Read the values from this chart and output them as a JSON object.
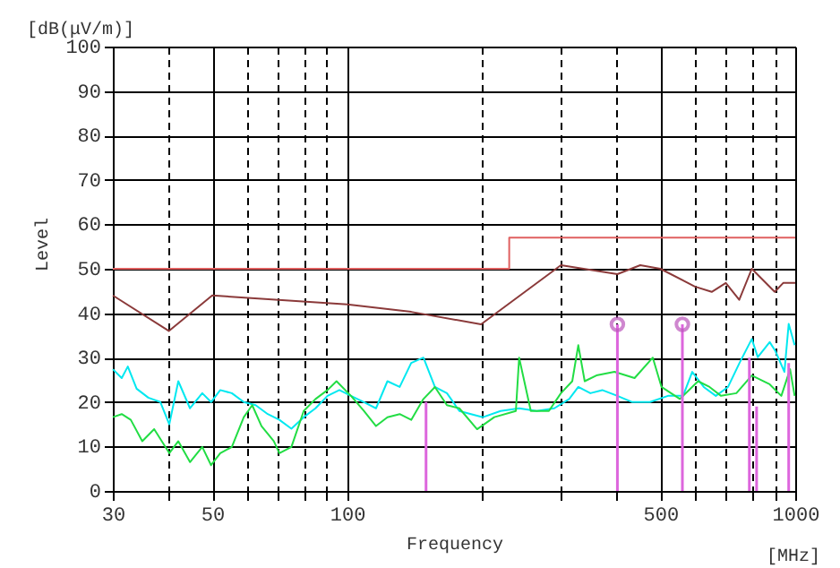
{
  "chart_data": {
    "type": "line",
    "xlabel": "Frequency",
    "ylabel": "Level",
    "annotations": [
      "[dB(μV/m)]",
      "[MHz]"
    ],
    "log": "x",
    "xlim": [
      30,
      1000
    ],
    "ylim": [
      0,
      100
    ],
    "xticks": [
      30,
      {
        "value": 40,
        "label": null
      },
      50,
      {
        "value": 60,
        "label": null
      },
      {
        "value": 70,
        "label": null
      },
      {
        "value": 80,
        "label": null
      },
      {
        "value": 90,
        "label": null
      },
      100,
      {
        "value": 200,
        "label": null
      },
      {
        "value": 300,
        "label": null
      },
      {
        "value": 400,
        "label": null
      },
      500,
      {
        "value": 600,
        "label": null
      },
      {
        "value": 700,
        "label": null
      },
      {
        "value": 800,
        "label": null
      },
      {
        "value": 900,
        "label": null
      },
      1000
    ],
    "yticks": [
      0,
      10,
      20,
      30,
      40,
      50,
      60,
      70,
      80,
      90,
      100
    ],
    "grid": true,
    "series": [
      {
        "color": "#00e8f0",
        "x": [
          30,
          31.4,
          32.4,
          33.9,
          36.0,
          38.3,
          40.1,
          42.0,
          44.6,
          47.5,
          49.7,
          52.1,
          55.3,
          58.8,
          62.5,
          66.5,
          70.6,
          75.1,
          80.0,
          85.0,
          90.4,
          96.1,
          102,
          109,
          116,
          123,
          131,
          139,
          148,
          157,
          167,
          178,
          189,
          201,
          220,
          242,
          265,
          290,
          313,
          328,
          349,
          371,
          401,
          433,
          474,
          520,
          562,
          589,
          625,
          665,
          708,
          751,
          800,
          825,
          877,
          903,
          946,
          967,
          997
        ],
        "values": [
          27.4,
          25.4,
          28,
          23,
          21,
          20,
          15,
          24.7,
          18.6,
          22,
          20,
          22.7,
          22,
          20,
          19.3,
          17.3,
          16,
          14,
          16.6,
          18.6,
          21.4,
          22.7,
          21.4,
          20,
          18.6,
          24.7,
          23.4,
          28.8,
          30,
          23.4,
          22,
          18,
          17.3,
          16.6,
          18,
          18.6,
          18,
          18.6,
          20.7,
          23.4,
          22,
          22.7,
          21.4,
          20,
          20,
          21.4,
          21.4,
          26.8,
          23.4,
          21.4,
          23.4,
          28.8,
          34.2,
          30.1,
          33.5,
          31.5,
          26.8,
          37.6,
          32.8
        ]
      },
      {
        "color": "#22dd44",
        "x": [
          30,
          31.4,
          32.9,
          34.9,
          37.1,
          40.1,
          42.0,
          44.6,
          47.5,
          49.7,
          52.1,
          55.3,
          58.8,
          61.4,
          64.4,
          68.6,
          70.6,
          75.1,
          80.0,
          85.0,
          90.4,
          94.7,
          102,
          109,
          116,
          123,
          131,
          139,
          148,
          157,
          167,
          178,
          195,
          213,
          238,
          242,
          257,
          282,
          300,
          318,
          328,
          339,
          360,
          395,
          438,
          481,
          503,
          553,
          607,
          644,
          683,
          739,
          800,
          877,
          931,
          974,
          997
        ],
        "values": [
          16.6,
          17.3,
          16,
          11.2,
          13.9,
          8.5,
          11.2,
          6.5,
          9.9,
          5.8,
          8.5,
          9.9,
          16.6,
          19.3,
          14.6,
          11.2,
          8.5,
          9.9,
          18,
          20.7,
          22.7,
          24.7,
          21.4,
          18,
          14.6,
          16.6,
          17.3,
          16,
          20.7,
          23.4,
          19.3,
          18.6,
          13.9,
          16.6,
          18,
          30,
          18,
          18,
          22,
          24.7,
          32.8,
          24.7,
          26,
          26.8,
          25.4,
          30,
          23.4,
          20.7,
          24.7,
          23.4,
          21.4,
          22,
          26,
          24,
          21.4,
          27.4,
          21.4
        ]
      },
      {
        "color": "#8b3a3a",
        "x": [
          30,
          40,
          50,
          100,
          139,
          199,
          300,
          401,
          451,
          500,
          597,
          651,
          700,
          750,
          800,
          900,
          940,
          1000
        ],
        "values": [
          44,
          36,
          44,
          42,
          40.3,
          37.5,
          50.8,
          48.8,
          50.8,
          50,
          46,
          44.8,
          46.8,
          43,
          50,
          44.8,
          46.8,
          46.8
        ]
      },
      {
        "type": "step",
        "color": "#e06060",
        "x": [
          30,
          230,
          1000
        ],
        "values": [
          50,
          57,
          57
        ]
      },
      {
        "type": "bar",
        "color": "#dd66dd",
        "x": [
          150,
          401,
          560,
          790,
          820,
          967
        ],
        "values": [
          20,
          37.5,
          37.5,
          30,
          19,
          28.8
        ]
      },
      {
        "type": "scatter",
        "color": "#bb55bb",
        "marker": "circle",
        "x": [
          401,
          560
        ],
        "values": [
          37.5,
          37.5
        ]
      }
    ]
  }
}
